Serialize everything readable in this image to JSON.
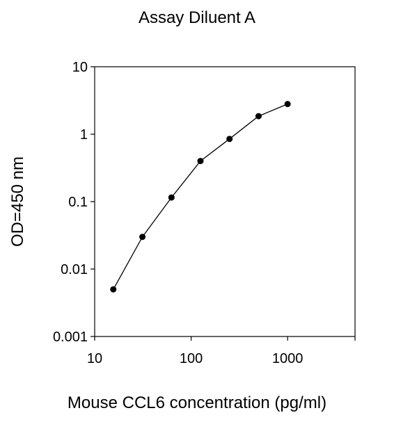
{
  "chart_data": {
    "type": "line",
    "title": "Assay Diluent A",
    "xlabel": "Mouse CCL6 concentration (pg/ml)",
    "ylabel": "OD=450 nm",
    "x_scale": "log",
    "y_scale": "log",
    "xlim": [
      10,
      5000
    ],
    "ylim": [
      0.001,
      10
    ],
    "x_ticks": [
      10,
      100,
      1000
    ],
    "x_tick_labels": [
      "10",
      "100",
      "1000"
    ],
    "y_ticks": [
      0.001,
      0.01,
      0.1,
      1,
      10
    ],
    "y_tick_labels": [
      "0.001",
      "0.01",
      "0.1",
      "1",
      "10"
    ],
    "grid": false,
    "legend": "none",
    "series": [
      {
        "x": [
          15.6,
          31.25,
          62.5,
          125,
          250,
          500,
          1000
        ],
        "y": [
          0.005,
          0.03,
          0.115,
          0.4,
          0.85,
          1.85,
          2.8
        ],
        "color": "#000000"
      }
    ]
  }
}
